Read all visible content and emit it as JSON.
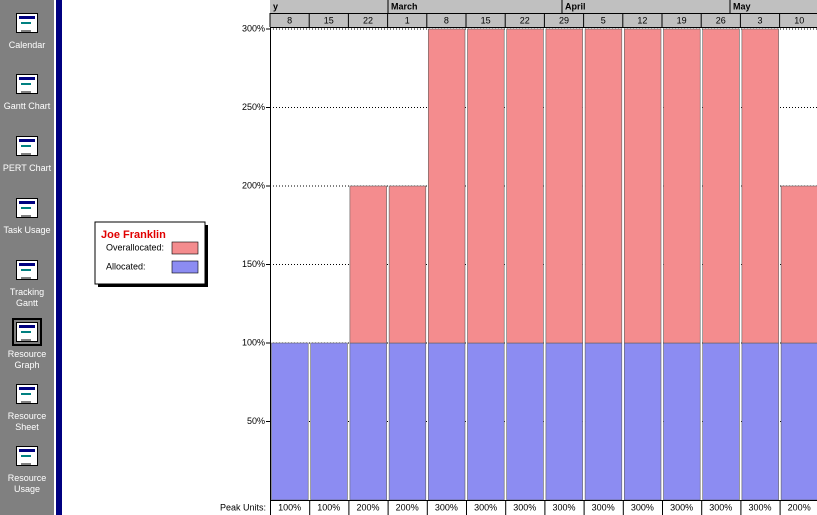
{
  "sidebar": {
    "items": [
      "Calendar",
      "Gantt Chart",
      "PERT Chart",
      "Task Usage",
      "Tracking Gantt",
      "Resource Graph",
      "Resource Sheet",
      "Resource Usage"
    ]
  },
  "timescale": {
    "months": [
      "y",
      "March",
      "April",
      "May"
    ]
  },
  "chart_data": {
    "type": "bar",
    "stacked": true,
    "title": "Joe Franklin",
    "categories": [
      "8",
      "15",
      "22",
      "1",
      "8",
      "15",
      "22",
      "29",
      "5",
      "12",
      "19",
      "26",
      "3",
      "10"
    ],
    "series": [
      {
        "name": "Allocated:",
        "color": "#8c8cf2",
        "values": [
          100,
          100,
          100,
          100,
          100,
          100,
          100,
          100,
          100,
          100,
          100,
          100,
          100,
          100
        ]
      },
      {
        "name": "Overallocated:",
        "color": "#f48c8e",
        "values": [
          0,
          0,
          100,
          100,
          200,
          200,
          200,
          200,
          200,
          200,
          200,
          200,
          200,
          100
        ]
      }
    ],
    "ylim": [
      0,
      300
    ],
    "yticks": [
      {
        "value": 50,
        "label": "50%"
      },
      {
        "value": 100,
        "label": "100%"
      },
      {
        "value": 150,
        "label": "150%"
      },
      {
        "value": 200,
        "label": "200%"
      },
      {
        "value": 250,
        "label": "250%"
      },
      {
        "value": 300,
        "label": "300%"
      }
    ],
    "grid": true,
    "peak_units": {
      "label": "Peak Units:",
      "values": [
        100,
        100,
        200,
        200,
        300,
        300,
        300,
        300,
        300,
        300,
        300,
        300,
        300,
        200
      ],
      "value_labels": [
        "100%",
        "100%",
        "200%",
        "200%",
        "300%",
        "300%",
        "300%",
        "300%",
        "300%",
        "300%",
        "300%",
        "300%",
        "300%",
        "200%"
      ]
    }
  }
}
